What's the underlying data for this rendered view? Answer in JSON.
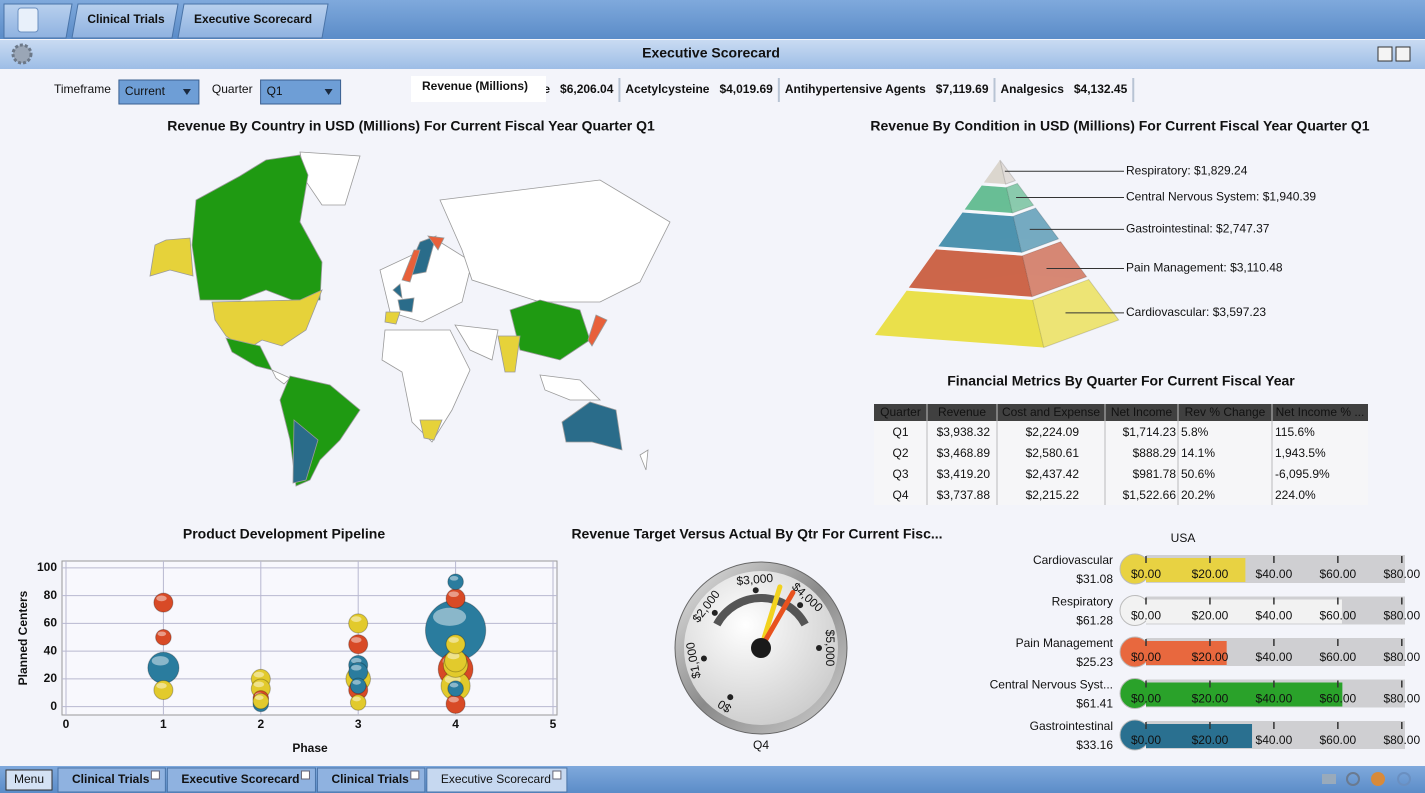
{
  "tabs": [
    "Clinical Trials",
    "Executive Scorecard"
  ],
  "window_title": "Executive Scorecard",
  "filters": [
    {
      "label": "Timeframe",
      "value": "Current"
    },
    {
      "label": "Quarter",
      "value": "Q1"
    }
  ],
  "ticker": {
    "label": "Revenue (Millions)",
    "items": [
      {
        "name": "ne",
        "value": "$6,206.04"
      },
      {
        "name": "Acetylcysteine",
        "value": "$4,019.69"
      },
      {
        "name": "Antihypertensive Agents",
        "value": "$7,119.69"
      },
      {
        "name": "Analgesics",
        "value": "$4,132.45"
      }
    ]
  },
  "map": {
    "title": "Revenue By Country in USD (Millions) For Current Fiscal Year Quarter Q1"
  },
  "table": {
    "title": "Financial Metrics By Quarter For Current Fiscal Year",
    "columns": [
      "Quarter",
      "Revenue",
      "Cost and Expense",
      "Net Income",
      "Rev % Change",
      "Net Income % ..."
    ],
    "rows": [
      [
        "Q1",
        "$3,938.32",
        "$2,224.09",
        "$1,714.23",
        "5.8%",
        "115.6%"
      ],
      [
        "Q2",
        "$3,468.89",
        "$2,580.61",
        "$888.29",
        "14.1%",
        "1,943.5%"
      ],
      [
        "Q3",
        "$3,419.20",
        "$2,437.42",
        "$981.78",
        "50.6%",
        "-6,095.9%"
      ],
      [
        "Q4",
        "$3,737.88",
        "$2,215.22",
        "$1,522.66",
        "20.2%",
        "224.0%"
      ]
    ]
  },
  "chart_data": [
    {
      "type": "pyramid",
      "title": "Revenue By Condition in USD (Millions) For Current Fiscal Year Quarter Q1",
      "labels": [
        "Respiratory: $1,829.24",
        "Central Nervous System: $1,940.39",
        "Gastrointestinal: $2,747.37",
        "Pain Management: $3,110.48",
        "Cardiovascular: $3,597.23"
      ],
      "values": [
        1829.24,
        1940.39,
        2747.37,
        3110.48,
        3597.23
      ],
      "colors": [
        "#d9d2ca",
        "#5cb88c",
        "#3f8aa8",
        "#c9593b",
        "#e9dd3c"
      ]
    },
    {
      "type": "bubble",
      "title": "Product Development Pipeline",
      "xlabel": "Phase",
      "ylabel": "Planned Centers",
      "xlim": [
        0,
        5
      ],
      "xticks": [
        0,
        1,
        2,
        3,
        4,
        5
      ],
      "ylim": [
        -6,
        105
      ],
      "yticks": [
        0,
        20,
        40,
        60,
        80,
        100
      ],
      "grid": true,
      "series": [
        {
          "color": "#d84a26",
          "x": [
            1,
            1,
            2,
            3,
            3,
            4,
            4,
            4
          ],
          "values": [
            75,
            50,
            6,
            45,
            12,
            78,
            27,
            2
          ],
          "sizes": [
            3,
            2,
            2,
            3,
            3,
            3,
            10,
            3
          ]
        },
        {
          "color": "#2a7c9e",
          "x": [
            1,
            2,
            3,
            3,
            3,
            4,
            4,
            4
          ],
          "values": [
            28,
            2,
            30,
            25,
            15,
            90,
            55,
            13
          ],
          "sizes": [
            8,
            2,
            3,
            3,
            2,
            2,
            30,
            2
          ]
        },
        {
          "color": "#e2ca2c",
          "x": [
            1,
            2,
            2,
            2,
            3,
            3,
            3,
            4,
            4,
            4,
            4
          ],
          "values": [
            12,
            20,
            13,
            4,
            60,
            20,
            3,
            45,
            33,
            15,
            30
          ],
          "sizes": [
            3,
            3,
            3,
            2,
            3,
            5,
            2,
            3,
            4,
            7,
            5
          ]
        }
      ]
    },
    {
      "type": "gauge",
      "title": "Revenue Target Versus Actual By Qtr For Current Fisc...",
      "label": "Q4",
      "lim": [
        0,
        5000
      ],
      "ticks": [
        {
          "value": 0,
          "label": "$0"
        },
        {
          "value": 1000,
          "label": "$1,000"
        },
        {
          "value": 2000,
          "label": "$2,000"
        },
        {
          "value": 3000,
          "label": "$3,000"
        },
        {
          "value": 4000,
          "label": "$4,000"
        },
        {
          "value": 5000,
          "label": "$5,000"
        }
      ],
      "needles": [
        {
          "color": "#f2d21e",
          "value": 3470
        },
        {
          "color": "#e8521e",
          "value": 3737.88
        }
      ]
    },
    {
      "type": "bullet",
      "title": "USA",
      "categories": [
        "Cardiovascular",
        "Respiratory",
        "Pain Management",
        "Central Nervous Syst...",
        "Gastrointestinal"
      ],
      "values": [
        31.08,
        61.28,
        25.23,
        61.41,
        33.16
      ],
      "value_labels": [
        "$31.08",
        "$61.28",
        "$25.23",
        "$61.41",
        "$33.16"
      ],
      "colors": [
        "#e8d242",
        "#f2f2f2",
        "#e8683e",
        "#2aa22a",
        "#2a7090"
      ],
      "xlim": [
        0,
        81
      ],
      "xticks": [
        {
          "value": 0,
          "label": "$0.00"
        },
        {
          "value": 20,
          "label": "$20.00"
        },
        {
          "value": 40,
          "label": "$40.00"
        },
        {
          "value": 60,
          "label": "$60.00"
        },
        {
          "value": 80,
          "label": "$80.00"
        }
      ]
    }
  ],
  "taskbar": {
    "menu": "Menu",
    "tabs": [
      "Clinical Trials",
      "Executive Scorecard",
      "Clinical Trials",
      "Executive Scorecard"
    ]
  }
}
